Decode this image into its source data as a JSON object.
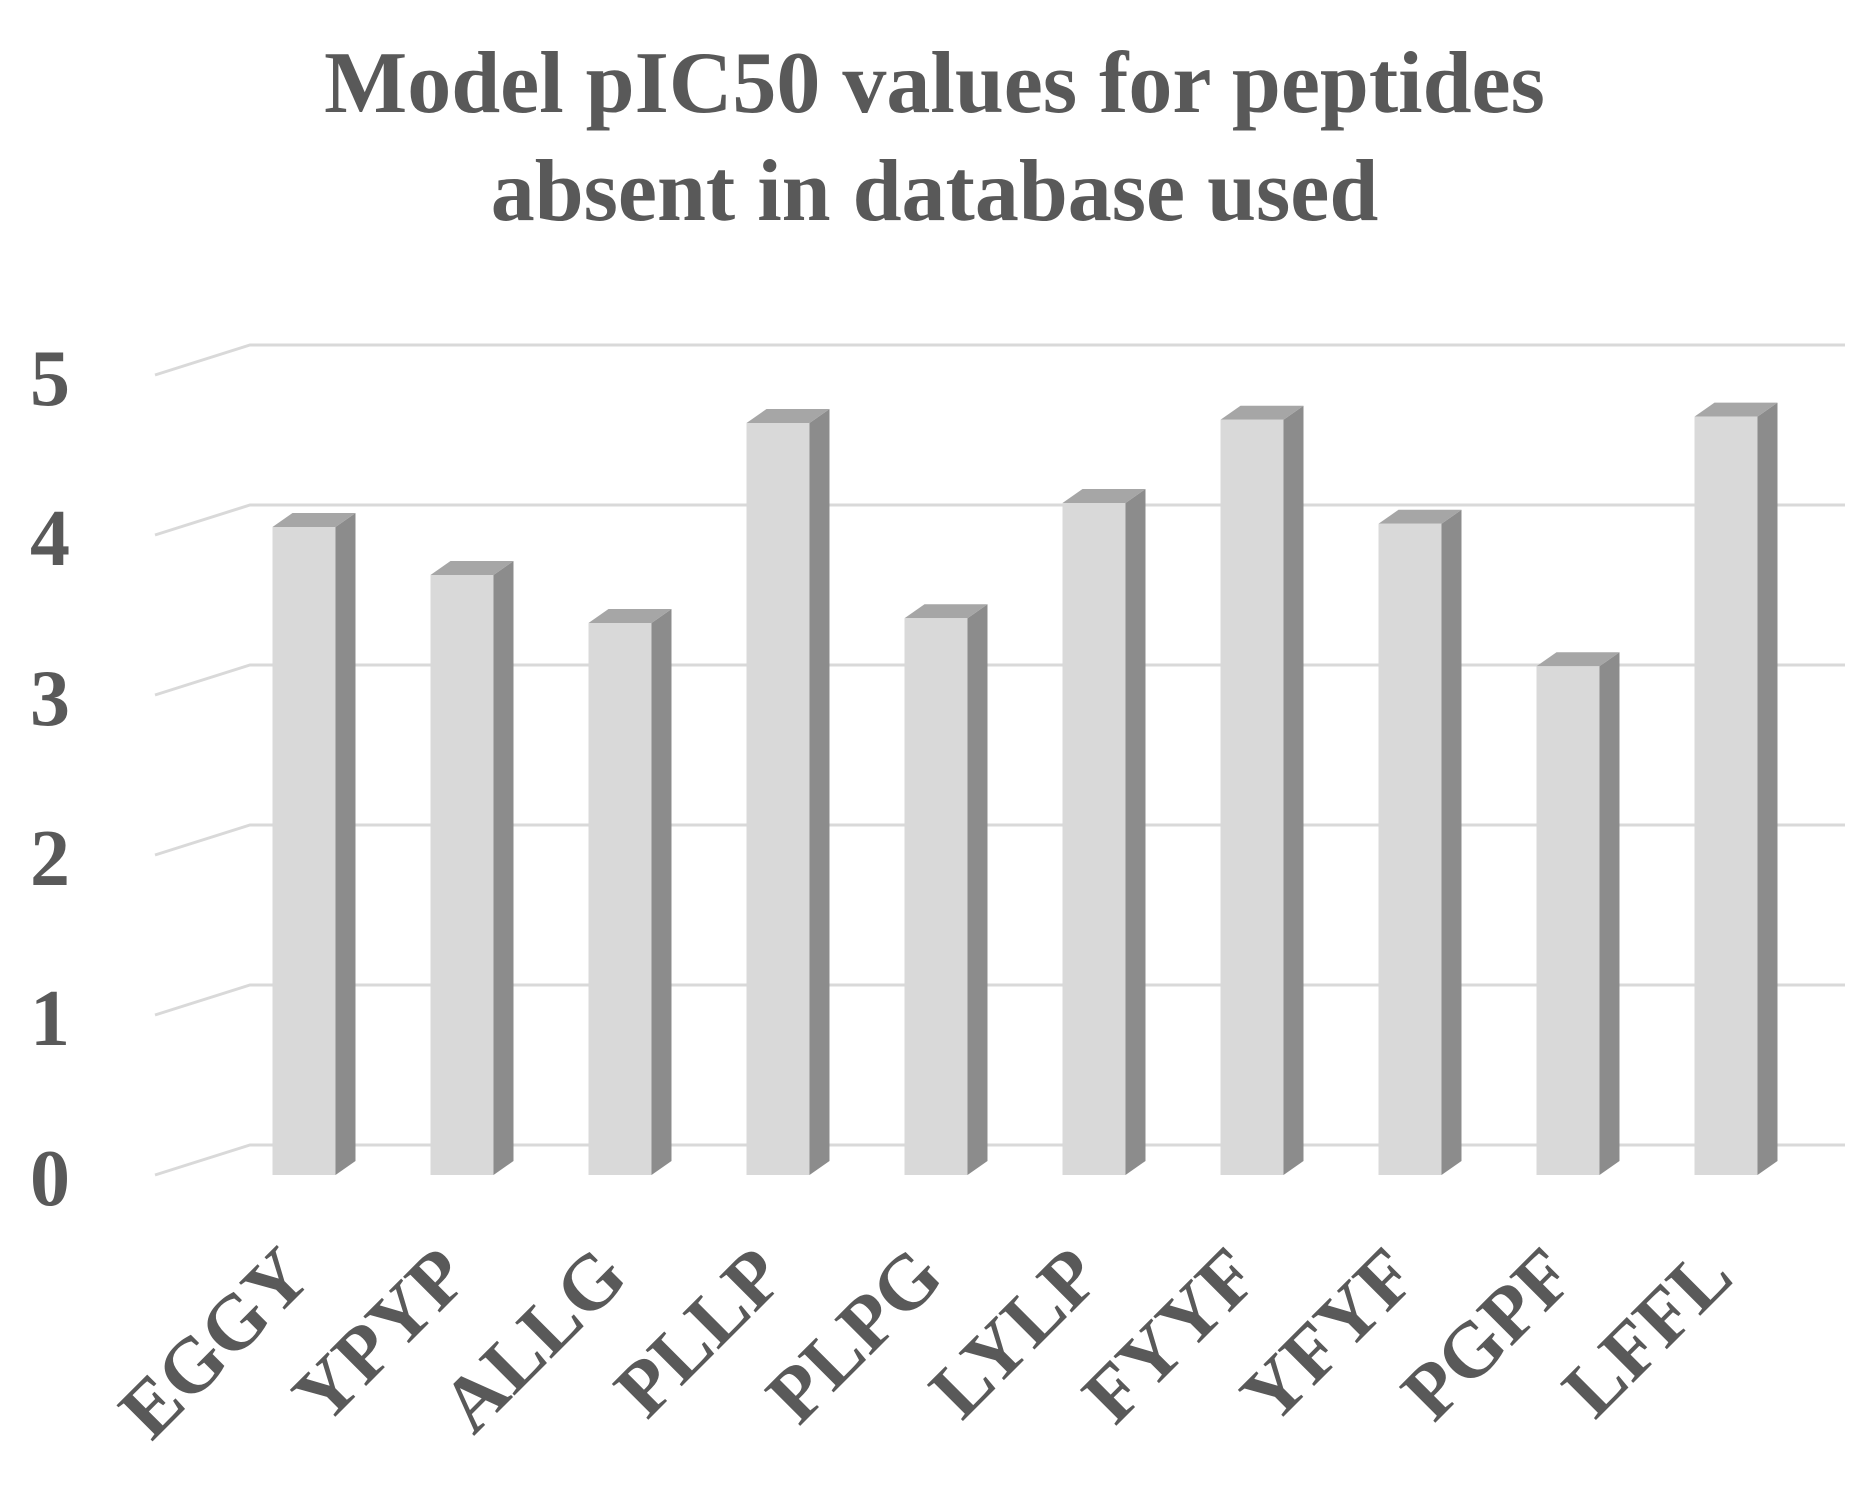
{
  "chart_data": {
    "type": "bar",
    "title_lines": [
      "Model pIC50 values for peptides",
      "absent in database used"
    ],
    "title": "Model pIC50 values for peptides absent in database used",
    "xlabel": "",
    "ylabel": "",
    "ylim": [
      0,
      5
    ],
    "yticks": [
      "0",
      "1",
      "2",
      "3",
      "4",
      "5"
    ],
    "categories": [
      "EGGY",
      "YPYP",
      "ALLG",
      "PLLP",
      "PLPG",
      "LYLP",
      "FYYF",
      "YFYF",
      "PGPF",
      "LFFL"
    ],
    "values": [
      4.05,
      3.75,
      3.45,
      4.7,
      3.48,
      4.2,
      4.72,
      4.07,
      3.18,
      4.74
    ],
    "grid": true,
    "legend": "none",
    "style": "3d-column"
  },
  "colors": {
    "bar_front": "#d9d9d9",
    "bar_side": "#8c8c8c",
    "bar_top": "#a6a6a6",
    "gridline": "#d9d9d9",
    "text": "#595959"
  }
}
